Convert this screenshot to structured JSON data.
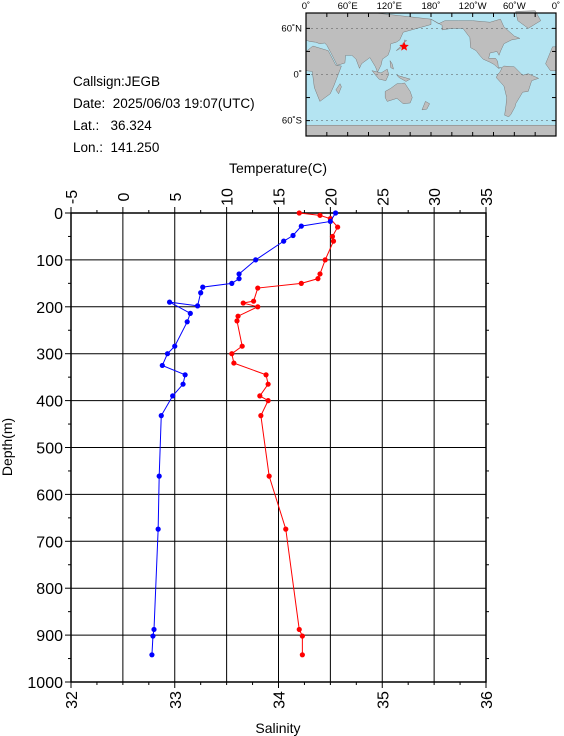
{
  "info": {
    "callsign": "Callsign:JEGB",
    "date": "Date:  2025/06/03 19:07(UTC)",
    "lat": "Lat.:   36.324",
    "lon": "Lon.:  141.250"
  },
  "map": {
    "lon_labels": [
      "0˚",
      "60˚E",
      "120˚E",
      "180˚",
      "120˚W",
      "60˚W",
      "0˚"
    ],
    "lat_labels": [
      "60˚N",
      "0˚",
      "60˚S"
    ],
    "station_lon": 141.25,
    "station_lat": 36.324,
    "ocean_color": "#b4e4f2",
    "land_color": "#bebebe",
    "marker_color": "#ff0000"
  },
  "chart_data": {
    "type": "line",
    "ylabel": "Depth(m)",
    "y_ticks": [
      "0",
      "100",
      "200",
      "300",
      "400",
      "500",
      "600",
      "700",
      "800",
      "900",
      "1000"
    ],
    "ylim": [
      0,
      1000
    ],
    "grid": true,
    "top_axis": {
      "label": "Temperature(C)",
      "range": [
        -5,
        35
      ],
      "ticks": [
        "-5",
        "0",
        "5",
        "10",
        "15",
        "20",
        "25",
        "30",
        "35"
      ]
    },
    "bottom_axis": {
      "label": "Salinity",
      "range": [
        32,
        36
      ],
      "ticks": [
        "32",
        "33",
        "34",
        "35",
        "36"
      ]
    },
    "series": [
      {
        "axis": "temperature",
        "color": "#ff0000",
        "points": [
          [
            17.0,
            0
          ],
          [
            19.0,
            5
          ],
          [
            20.0,
            12
          ],
          [
            20.7,
            30
          ],
          [
            20.2,
            50
          ],
          [
            20.3,
            60
          ],
          [
            19.5,
            100
          ],
          [
            19.0,
            130
          ],
          [
            18.8,
            140
          ],
          [
            17.2,
            150
          ],
          [
            13.0,
            160
          ],
          [
            12.6,
            188
          ],
          [
            11.6,
            192
          ],
          [
            13.0,
            200
          ],
          [
            11.1,
            220
          ],
          [
            11.0,
            230
          ],
          [
            11.5,
            284
          ],
          [
            10.5,
            300
          ],
          [
            10.7,
            320
          ],
          [
            13.8,
            345
          ],
          [
            14.0,
            365
          ],
          [
            13.2,
            390
          ],
          [
            14.0,
            400
          ],
          [
            13.3,
            432
          ],
          [
            14.1,
            561
          ],
          [
            15.7,
            674
          ],
          [
            17.0,
            888
          ],
          [
            17.3,
            902
          ],
          [
            17.3,
            942
          ]
        ]
      },
      {
        "axis": "salinity",
        "color": "#0000ff",
        "points": [
          [
            34.55,
            0
          ],
          [
            34.5,
            18
          ],
          [
            34.22,
            28
          ],
          [
            34.14,
            48
          ],
          [
            34.05,
            60
          ],
          [
            33.78,
            100
          ],
          [
            33.62,
            130
          ],
          [
            33.62,
            140
          ],
          [
            33.55,
            150
          ],
          [
            33.27,
            158
          ],
          [
            33.25,
            170
          ],
          [
            33.22,
            198
          ],
          [
            32.95,
            190
          ],
          [
            33.15,
            214
          ],
          [
            33.12,
            232
          ],
          [
            33.0,
            284
          ],
          [
            32.93,
            300
          ],
          [
            32.88,
            325
          ],
          [
            33.1,
            345
          ],
          [
            33.08,
            365
          ],
          [
            32.98,
            390
          ],
          [
            32.87,
            432
          ],
          [
            32.85,
            561
          ],
          [
            32.84,
            674
          ],
          [
            32.8,
            888
          ],
          [
            32.79,
            902
          ],
          [
            32.78,
            942
          ]
        ]
      }
    ]
  }
}
